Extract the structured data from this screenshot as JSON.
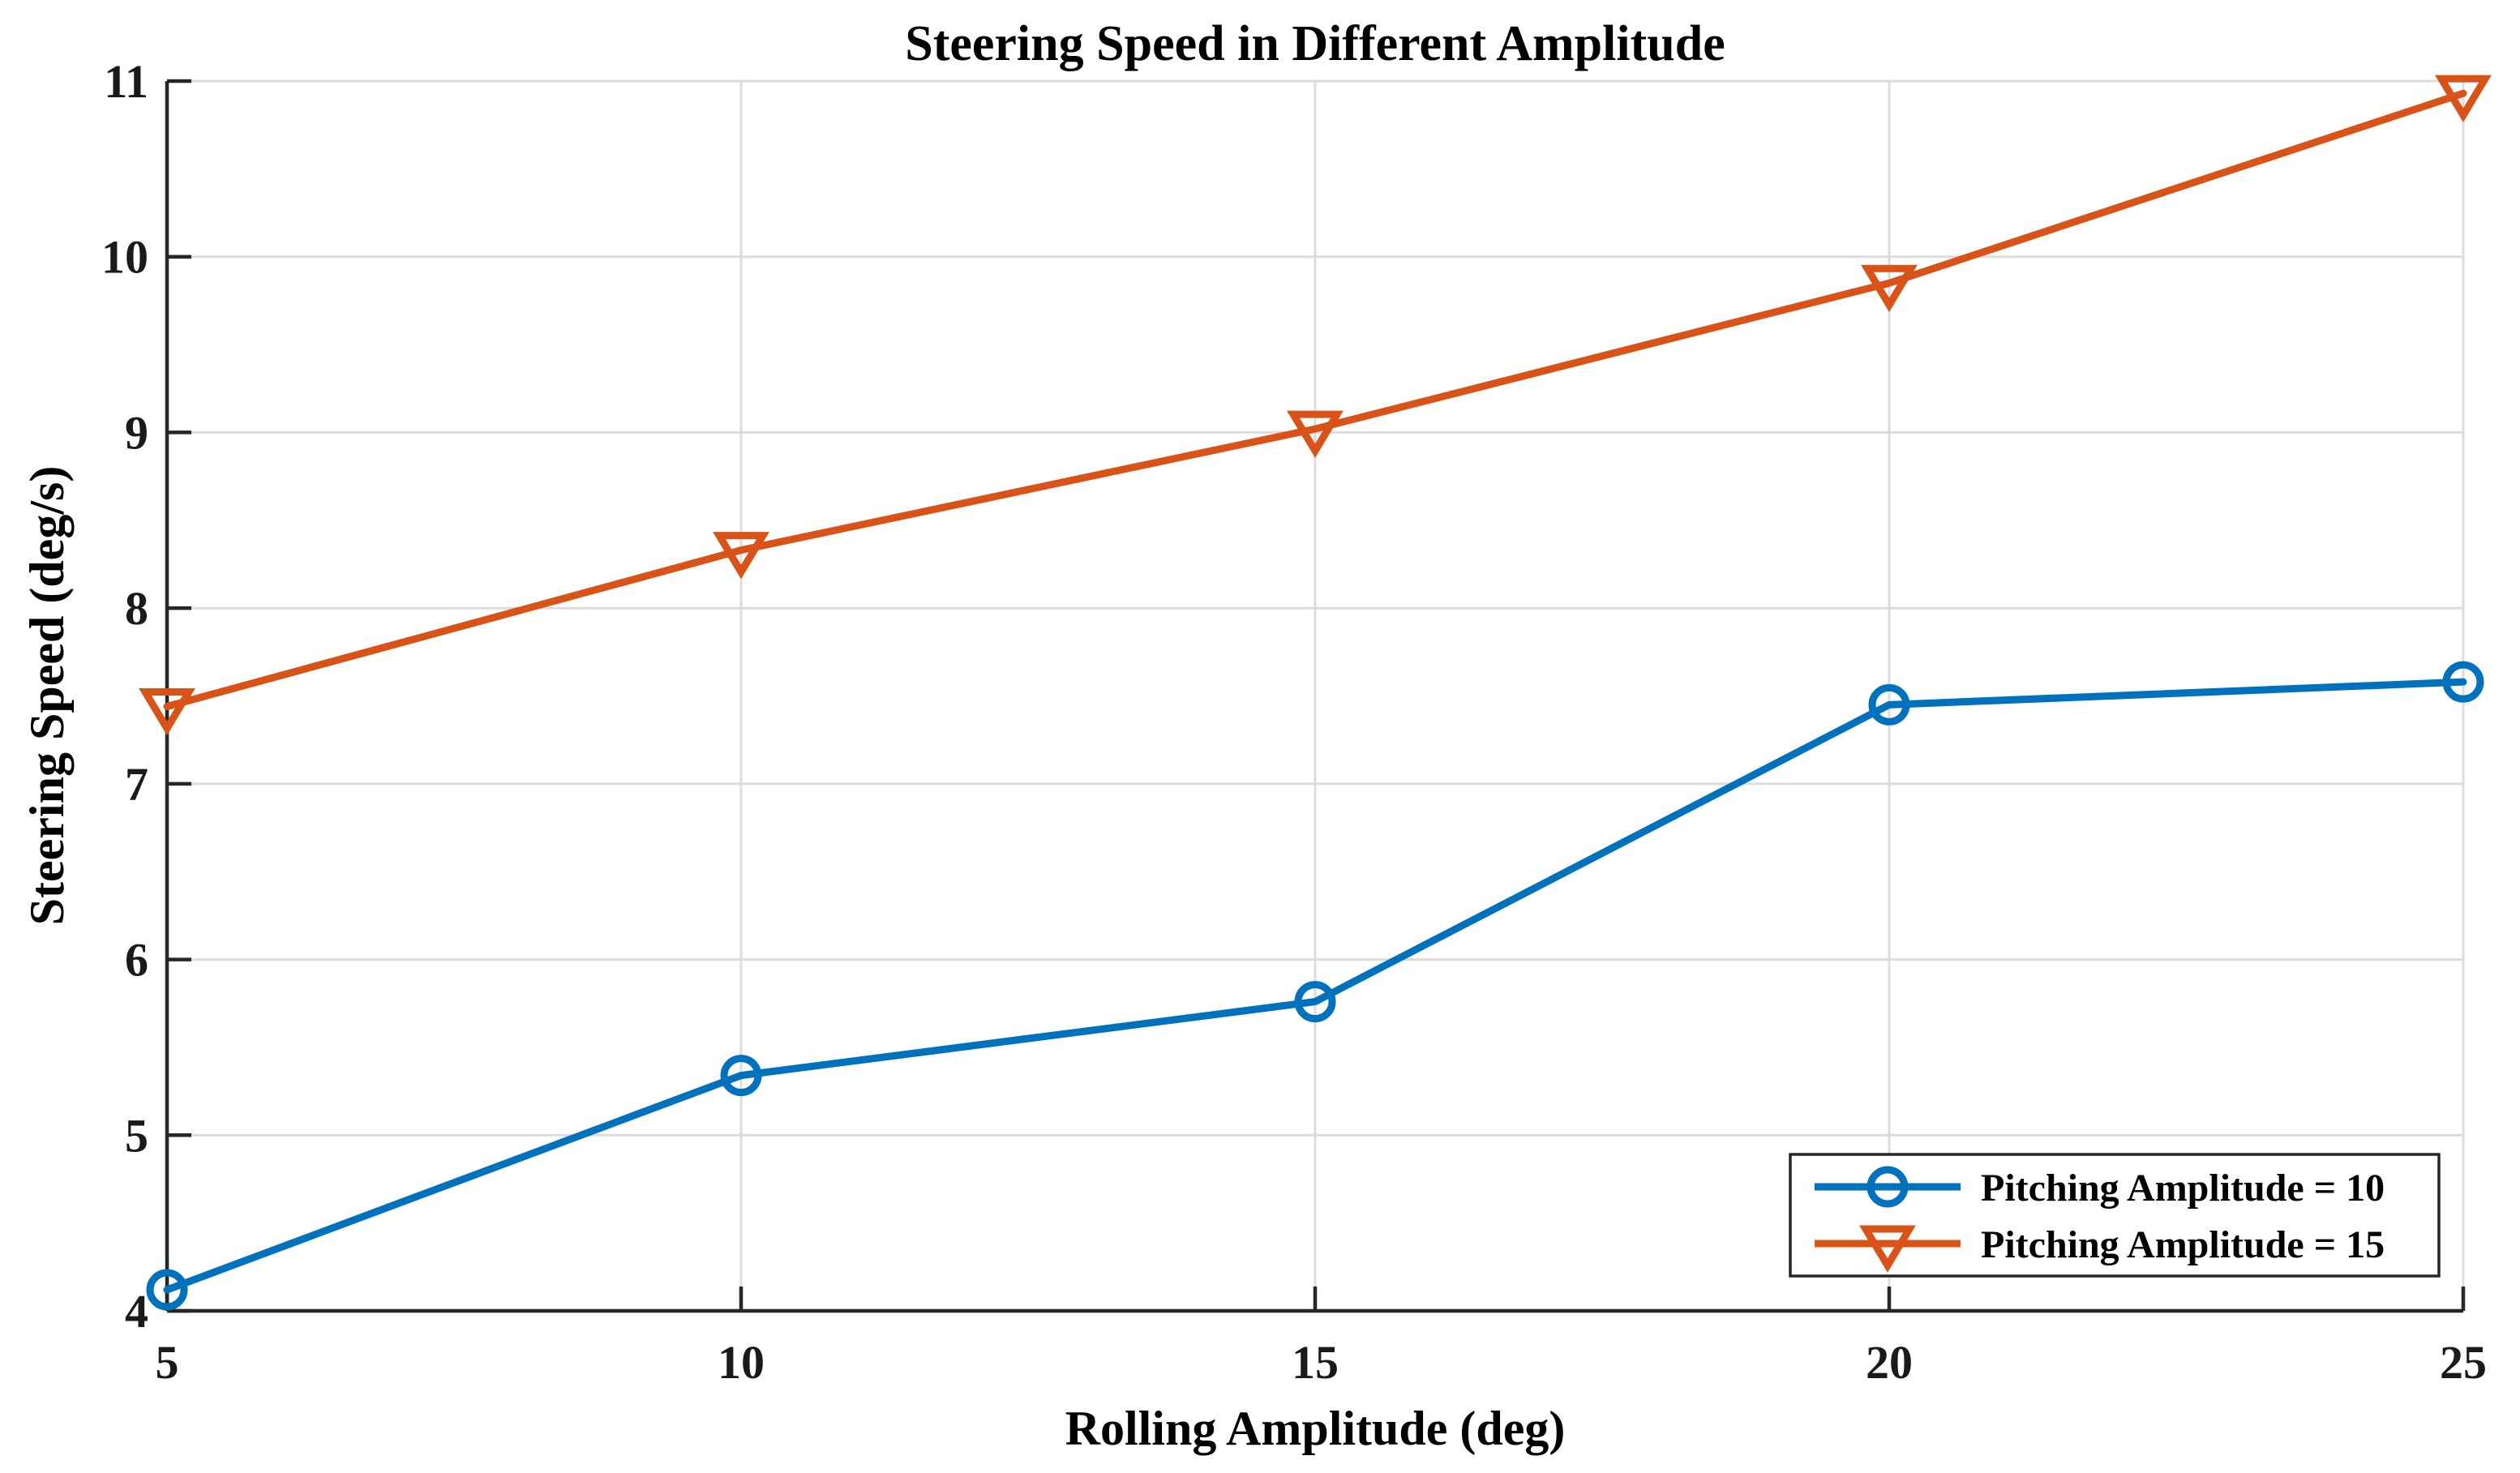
{
  "title": "Steering Speed in Different Amplitude",
  "chart_data": {
    "type": "line",
    "title": "Steering Speed in Different Amplitude",
    "xlabel": "Rolling Amplitude (deg)",
    "ylabel": "Steering Speed (deg/s)",
    "x": [
      5,
      10,
      15,
      20,
      25
    ],
    "xticks": [
      5,
      10,
      15,
      20,
      25
    ],
    "yticks": [
      4,
      5,
      6,
      7,
      8,
      9,
      10,
      11
    ],
    "xlim": [
      5,
      25
    ],
    "ylim": [
      4,
      11
    ],
    "grid": true,
    "legend_position": "bottom-right",
    "series": [
      {
        "name": "Pitching Amplitude = 10",
        "marker": "circle",
        "color": "#0072BD",
        "values": [
          4.12,
          5.34,
          5.76,
          7.45,
          7.58
        ]
      },
      {
        "name": "Pitching Amplitude = 15",
        "marker": "triangle-down",
        "color": "#D95319",
        "values": [
          7.44,
          8.33,
          9.02,
          9.85,
          10.93
        ]
      }
    ]
  },
  "colors": {
    "grid": "#DCDCDC",
    "spine": "#262626",
    "background": "#ffffff",
    "legend_border": "#262626"
  }
}
